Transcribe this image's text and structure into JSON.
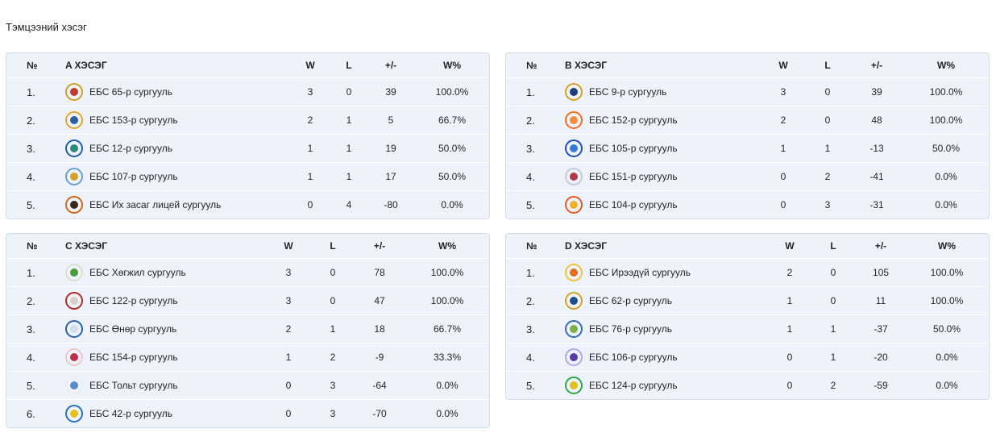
{
  "page_title": "Тэмцээний хэсэг",
  "headers": {
    "num": "№",
    "w": "W",
    "l": "L",
    "diff": "+/-",
    "pct": "W%"
  },
  "groups": [
    {
      "title": "A ХЭСЭГ",
      "rows": [
        {
          "num": "1.",
          "team": "ЕБС 65-р сургууль",
          "w": "3",
          "l": "0",
          "diff": "39",
          "pct": "100.0%",
          "ring": "#c9a227",
          "inner": "#c0392b"
        },
        {
          "num": "2.",
          "team": "ЕБС 153-р сургууль",
          "w": "2",
          "l": "1",
          "diff": "5",
          "pct": "66.7%",
          "ring": "#e0a82e",
          "inner": "#2d5fa8"
        },
        {
          "num": "3.",
          "team": "ЕБС 12-р сургууль",
          "w": "1",
          "l": "1",
          "diff": "19",
          "pct": "50.0%",
          "ring": "#1f5fa0",
          "inner": "#2a8a7a"
        },
        {
          "num": "4.",
          "team": "ЕБС 107-р сургууль",
          "w": "1",
          "l": "1",
          "diff": "17",
          "pct": "50.0%",
          "ring": "#6a9fd4",
          "inner": "#d4a22a"
        },
        {
          "num": "5.",
          "team": "ЕБС Их засаг лицей сургууль",
          "w": "0",
          "l": "4",
          "diff": "-80",
          "pct": "0.0%",
          "ring": "#d06a1a",
          "inner": "#3a2a1a"
        }
      ]
    },
    {
      "title": "B ХЭСЭГ",
      "rows": [
        {
          "num": "1.",
          "team": "ЕБС 9-р сургууль",
          "w": "3",
          "l": "0",
          "diff": "39",
          "pct": "100.0%",
          "ring": "#d4a22a",
          "inner": "#1f3f7a"
        },
        {
          "num": "2.",
          "team": "ЕБС 152-р сургууль",
          "w": "2",
          "l": "0",
          "diff": "48",
          "pct": "100.0%",
          "ring": "#f07020",
          "inner": "#f58a3a"
        },
        {
          "num": "3.",
          "team": "ЕБС 105-р сургууль",
          "w": "1",
          "l": "1",
          "diff": "-13",
          "pct": "50.0%",
          "ring": "#1f4fb0",
          "inner": "#3a7ad4"
        },
        {
          "num": "4.",
          "team": "ЕБС 151-р сургууль",
          "w": "0",
          "l": "2",
          "diff": "-41",
          "pct": "0.0%",
          "ring": "#c8c8d8",
          "inner": "#b03a4a"
        },
        {
          "num": "5.",
          "team": "ЕБС 104-р сургууль",
          "w": "0",
          "l": "3",
          "diff": "-31",
          "pct": "0.0%",
          "ring": "#e05a2a",
          "inner": "#f0b030"
        }
      ]
    },
    {
      "title": "C ХЭСЭГ",
      "rows": [
        {
          "num": "1.",
          "team": "ЕБС Хөгжил сургууль",
          "w": "3",
          "l": "0",
          "diff": "78",
          "pct": "100.0%",
          "ring": "#d8e0d0",
          "inner": "#4a9a3a"
        },
        {
          "num": "2.",
          "team": "ЕБС 122-р сургууль",
          "w": "3",
          "l": "0",
          "diff": "47",
          "pct": "100.0%",
          "ring": "#b02a2a",
          "inner": "#d8d0c8"
        },
        {
          "num": "3.",
          "team": "ЕБС Өнөр сургууль",
          "w": "2",
          "l": "1",
          "diff": "18",
          "pct": "66.7%",
          "ring": "#2a5fa8",
          "inner": "#cfdff0"
        },
        {
          "num": "4.",
          "team": "ЕБС 154-р сургууль",
          "w": "1",
          "l": "2",
          "diff": "-9",
          "pct": "33.3%",
          "ring": "#e8c8c8",
          "inner": "#c0304a"
        },
        {
          "num": "5.",
          "team": "ЕБС Тольт сургууль",
          "w": "0",
          "l": "3",
          "diff": "-64",
          "pct": "0.0%",
          "ring": "#e8eef6",
          "inner": "#5a8ac8"
        },
        {
          "num": "6.",
          "team": "ЕБС 42-р сургууль",
          "w": "0",
          "l": "3",
          "diff": "-70",
          "pct": "0.0%",
          "ring": "#2a6fc0",
          "inner": "#e8c020"
        }
      ]
    },
    {
      "title": "D ХЭСЭГ",
      "rows": [
        {
          "num": "1.",
          "team": "ЕБС Ирээдүй сургууль",
          "w": "2",
          "l": "0",
          "diff": "105",
          "pct": "100.0%",
          "ring": "#f0c040",
          "inner": "#e07020"
        },
        {
          "num": "2.",
          "team": "ЕБС 62-р сургууль",
          "w": "1",
          "l": "0",
          "diff": "11",
          "pct": "100.0%",
          "ring": "#d4a22a",
          "inner": "#1f4f8a"
        },
        {
          "num": "3.",
          "team": "ЕБС 76-р сургууль",
          "w": "1",
          "l": "1",
          "diff": "-37",
          "pct": "50.0%",
          "ring": "#3a6ab0",
          "inner": "#7ab04a"
        },
        {
          "num": "4.",
          "team": "ЕБС 106-р сургууль",
          "w": "0",
          "l": "1",
          "diff": "-20",
          "pct": "0.0%",
          "ring": "#b0a8e0",
          "inner": "#5a3aa8"
        },
        {
          "num": "5.",
          "team": "ЕБС 124-р сургууль",
          "w": "0",
          "l": "2",
          "diff": "-59",
          "pct": "0.0%",
          "ring": "#2aa84a",
          "inner": "#e0c020"
        }
      ]
    }
  ]
}
